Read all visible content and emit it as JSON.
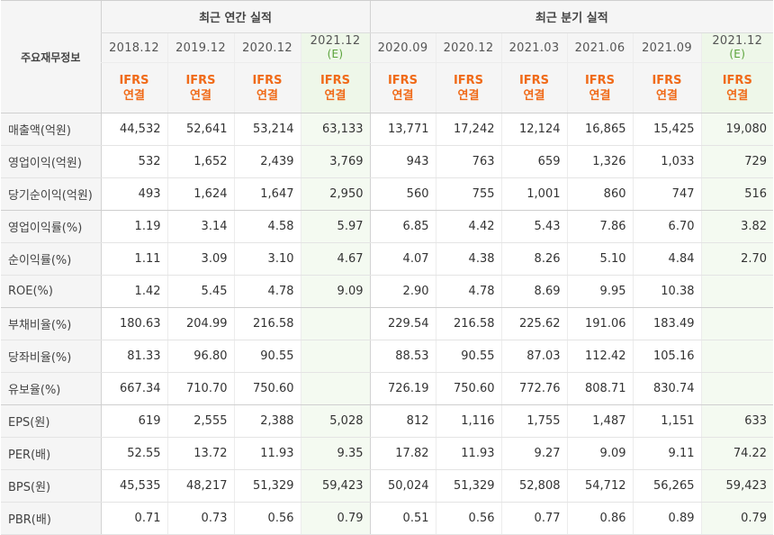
{
  "corner_label": "주요재무정보",
  "groups": {
    "annual": "최근 연간 실적",
    "quarterly": "최근 분기 실적"
  },
  "periods": [
    {
      "label": "2018.12",
      "est": ""
    },
    {
      "label": "2019.12",
      "est": ""
    },
    {
      "label": "2020.12",
      "est": ""
    },
    {
      "label": "2021.12",
      "est": "(E)"
    },
    {
      "label": "2020.09",
      "est": ""
    },
    {
      "label": "2020.12",
      "est": ""
    },
    {
      "label": "2021.03",
      "est": ""
    },
    {
      "label": "2021.06",
      "est": ""
    },
    {
      "label": "2021.09",
      "est": ""
    },
    {
      "label": "2021.12",
      "est": "(E)"
    }
  ],
  "basis": {
    "line1": "IFRS",
    "line2": "연결"
  },
  "rows": [
    {
      "label": "매출액(억원)",
      "values": [
        "44,532",
        "52,641",
        "53,214",
        "63,133",
        "13,771",
        "17,242",
        "12,124",
        "16,865",
        "15,425",
        "19,080"
      ]
    },
    {
      "label": "영업이익(억원)",
      "values": [
        "532",
        "1,652",
        "2,439",
        "3,769",
        "943",
        "763",
        "659",
        "1,326",
        "1,033",
        "729"
      ]
    },
    {
      "label": "당기순이익(억원)",
      "values": [
        "493",
        "1,624",
        "1,647",
        "2,950",
        "560",
        "755",
        "1,001",
        "860",
        "747",
        "516"
      ]
    },
    {
      "label": "영업이익률(%)",
      "values": [
        "1.19",
        "3.14",
        "4.58",
        "5.97",
        "6.85",
        "4.42",
        "5.43",
        "7.86",
        "6.70",
        "3.82"
      ]
    },
    {
      "label": "순이익률(%)",
      "values": [
        "1.11",
        "3.09",
        "3.10",
        "4.67",
        "4.07",
        "4.38",
        "8.26",
        "5.10",
        "4.84",
        "2.70"
      ]
    },
    {
      "label": "ROE(%)",
      "values": [
        "1.42",
        "5.45",
        "4.78",
        "9.09",
        "2.90",
        "4.78",
        "8.69",
        "9.95",
        "10.38",
        ""
      ]
    },
    {
      "label": "부채비율(%)",
      "values": [
        "180.63",
        "204.99",
        "216.58",
        "",
        "229.54",
        "216.58",
        "225.62",
        "191.06",
        "183.49",
        ""
      ]
    },
    {
      "label": "당좌비율(%)",
      "values": [
        "81.33",
        "96.80",
        "90.55",
        "",
        "88.53",
        "90.55",
        "87.03",
        "112.42",
        "105.16",
        ""
      ]
    },
    {
      "label": "유보율(%)",
      "values": [
        "667.34",
        "710.70",
        "750.60",
        "",
        "726.19",
        "750.60",
        "772.76",
        "808.71",
        "830.74",
        ""
      ]
    },
    {
      "label": "EPS(원)",
      "values": [
        "619",
        "2,555",
        "2,388",
        "5,028",
        "812",
        "1,116",
        "1,755",
        "1,487",
        "1,151",
        "633"
      ]
    },
    {
      "label": "PER(배)",
      "values": [
        "52.55",
        "13.72",
        "11.93",
        "9.35",
        "17.82",
        "11.93",
        "9.27",
        "9.09",
        "9.11",
        "74.22"
      ]
    },
    {
      "label": "BPS(원)",
      "values": [
        "45,535",
        "48,217",
        "51,329",
        "59,423",
        "50,024",
        "51,329",
        "52,808",
        "54,712",
        "56,265",
        "59,423"
      ]
    },
    {
      "label": "PBR(배)",
      "values": [
        "0.71",
        "0.73",
        "0.56",
        "0.79",
        "0.51",
        "0.56",
        "0.77",
        "0.86",
        "0.89",
        "0.79"
      ]
    }
  ]
}
